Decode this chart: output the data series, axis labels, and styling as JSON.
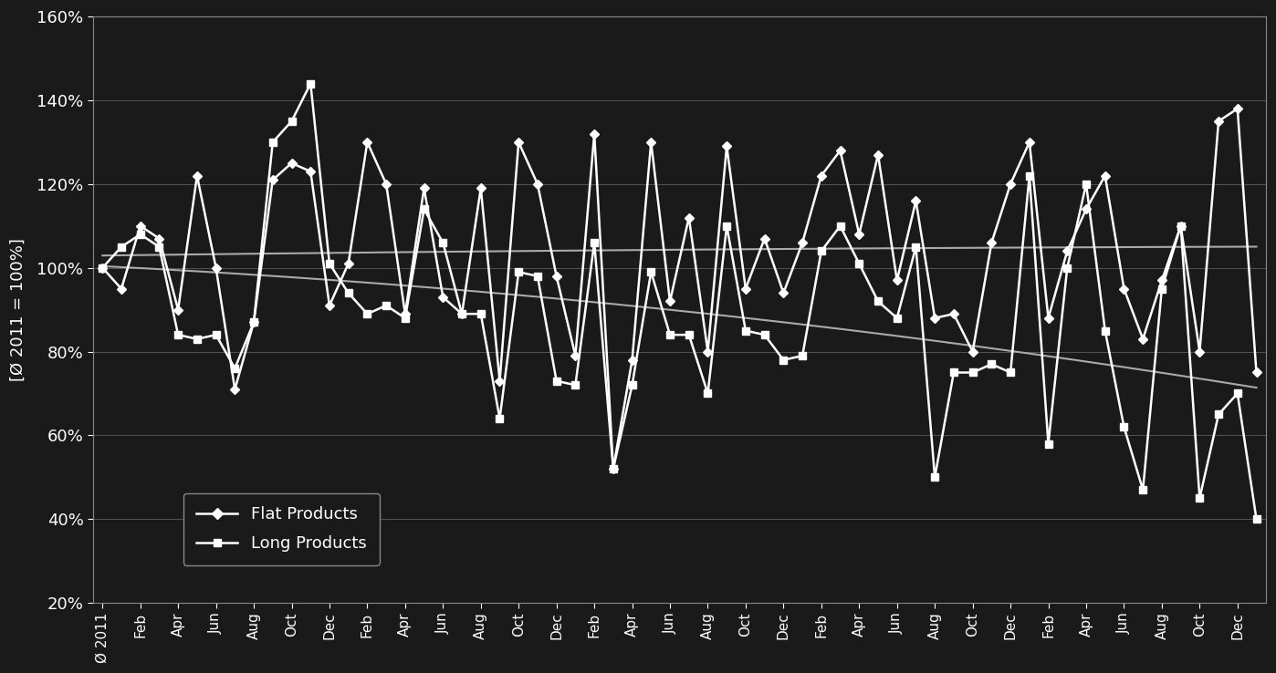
{
  "background_color": "#1a1a1a",
  "text_color": "#ffffff",
  "ylabel": "[Ø 2011 = 100%]",
  "ylim_low": 0.2,
  "ylim_high": 1.6,
  "yticks": [
    0.2,
    0.4,
    0.6,
    0.8,
    1.0,
    1.2,
    1.4,
    1.6
  ],
  "ytick_labels": [
    "20%",
    "40%",
    "60%",
    "80%",
    "100%",
    "120%",
    "140%",
    "160%"
  ],
  "xtick_labels": [
    "Ø 2011",
    "Feb",
    "Apr",
    "Jun",
    "Aug",
    "Oct",
    "Dec",
    "Feb",
    "Apr",
    "Jun",
    "Aug",
    "Oct",
    "Dec",
    "Feb",
    "Apr",
    "Jun",
    "Aug",
    "Oct",
    "Dec",
    "Feb",
    "Apr",
    "Jun",
    "Aug",
    "Oct",
    "Dec",
    "Feb",
    "Apr",
    "Jun",
    "Aug",
    "Oct",
    "Dec"
  ],
  "legend_labels": [
    "Flat Products",
    "Long Products"
  ],
  "flat_products": [
    1.0,
    0.95,
    1.1,
    1.07,
    0.9,
    1.22,
    1.0,
    0.71,
    0.87,
    1.21,
    1.25,
    1.23,
    0.91,
    1.01,
    1.3,
    1.2,
    0.89,
    1.19,
    0.93,
    0.89,
    1.19,
    0.73,
    1.3,
    1.2,
    0.98,
    0.79,
    1.32,
    0.52,
    0.78,
    1.3,
    0.92,
    1.12,
    0.8,
    1.29,
    0.95,
    1.07,
    0.94,
    1.06,
    1.22,
    1.28,
    1.08,
    1.27,
    0.97,
    1.16,
    0.88,
    0.89,
    0.8,
    1.06,
    1.2,
    1.3,
    0.88,
    1.04,
    1.14,
    1.22,
    0.95,
    0.83,
    0.97,
    1.1,
    0.8,
    1.35,
    1.38,
    0.75
  ],
  "long_products": [
    1.0,
    1.05,
    1.08,
    1.05,
    0.84,
    0.83,
    0.84,
    0.76,
    0.87,
    1.3,
    1.35,
    1.44,
    1.01,
    0.94,
    0.89,
    0.91,
    0.88,
    1.14,
    1.06,
    0.89,
    0.89,
    0.64,
    0.99,
    0.98,
    0.73,
    0.72,
    1.06,
    0.52,
    0.72,
    0.99,
    0.84,
    0.84,
    0.7,
    1.1,
    0.85,
    0.84,
    0.78,
    0.79,
    1.04,
    1.1,
    1.01,
    0.92,
    0.88,
    1.05,
    0.5,
    0.75,
    0.75,
    0.77,
    0.75,
    1.22,
    0.58,
    1.0,
    1.2,
    0.85,
    0.62,
    0.47,
    0.95,
    1.1,
    0.45,
    0.65,
    0.7,
    0.4
  ]
}
